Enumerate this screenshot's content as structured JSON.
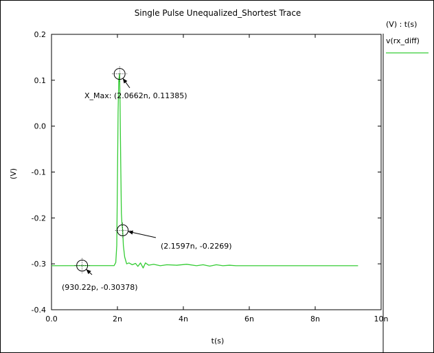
{
  "chart_data": {
    "type": "line",
    "title": "Single Pulse Unequalized_Shortest Trace",
    "xlabel": "t(s)",
    "ylabel": "(V)",
    "xlim": [
      0,
      1e-08
    ],
    "ylim": [
      -0.4,
      0.2
    ],
    "x_ticks": [
      0,
      2e-09,
      4e-09,
      6e-09,
      8e-09,
      1e-08
    ],
    "x_tick_labels": [
      "0.0",
      "2n",
      "4n",
      "6n",
      "8n",
      "10n"
    ],
    "y_ticks": [
      0.2,
      0.1,
      0.0,
      -0.1,
      -0.2,
      -0.3,
      -0.4
    ],
    "y_tick_labels": [
      "0.2",
      "0.1",
      "0.0",
      "-0.1",
      "-0.2",
      "-0.3",
      "-0.4"
    ],
    "grid": false,
    "legend": {
      "header": "(V) : t(s)",
      "placement": "right",
      "entries": [
        {
          "name": "v(rx_diff)",
          "color": "#33cc33"
        }
      ]
    },
    "series": [
      {
        "name": "v(rx_diff)",
        "color": "#33cc33",
        "x": [
          0,
          1.9e-09,
          1.95e-09,
          1.98e-09,
          2e-09,
          2.02e-09,
          2.04e-09,
          2.0662e-09,
          2.08e-09,
          2.1e-09,
          2.12e-09,
          2.14e-09,
          2.1597e-09,
          2.18e-09,
          2.22e-09,
          2.28e-09,
          2.35e-09,
          2.45e-09,
          2.55e-09,
          2.62e-09,
          2.7e-09,
          2.78e-09,
          2.85e-09,
          2.95e-09,
          3.1e-09,
          3.3e-09,
          3.5e-09,
          3.8e-09,
          4.1e-09,
          4.4e-09,
          4.6e-09,
          4.8e-09,
          5e-09,
          5.2e-09,
          5.4e-09,
          5.6e-09,
          6e-09,
          7e-09,
          8e-09,
          9.3e-09
        ],
        "y": [
          -0.304,
          -0.3038,
          -0.297,
          -0.26,
          -0.12,
          0.03,
          0.1,
          0.11385,
          0.05,
          -0.08,
          -0.19,
          -0.215,
          -0.2269,
          -0.26,
          -0.285,
          -0.3,
          -0.298,
          -0.302,
          -0.299,
          -0.3055,
          -0.298,
          -0.309,
          -0.298,
          -0.303,
          -0.301,
          -0.304,
          -0.302,
          -0.303,
          -0.301,
          -0.304,
          -0.302,
          -0.305,
          -0.302,
          -0.304,
          -0.303,
          -0.304,
          -0.304,
          -0.304,
          -0.304,
          -0.304
        ]
      }
    ],
    "annotations": [
      {
        "label": "X_Max: (2.0662n, 0.11385)",
        "x": 2.0662e-09,
        "y": 0.11385
      },
      {
        "label": "(2.1597n, -0.2269)",
        "x": 2.1597e-09,
        "y": -0.2269
      },
      {
        "label": "(930.22p, -0.30378)",
        "x": 9.3022e-10,
        "y": -0.30378
      }
    ]
  }
}
